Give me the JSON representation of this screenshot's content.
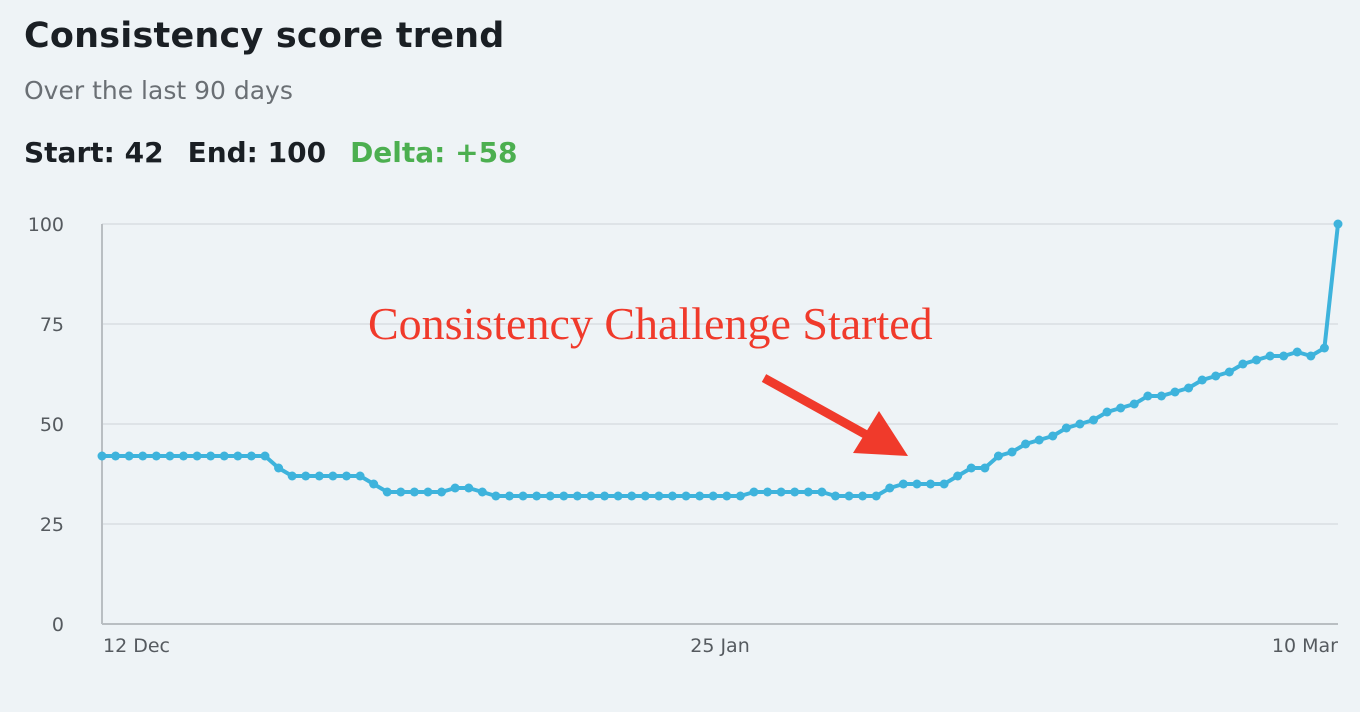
{
  "header": {
    "title": "Consistency score trend",
    "subtitle": "Over the last 90 days"
  },
  "stats": {
    "start_label": "Start: 42",
    "end_label": "End: 100",
    "delta_label": "Delta: +58",
    "delta_color": "#4caf50"
  },
  "annotation": {
    "text": "Consistency Challenge Started",
    "color": "#f03a2b"
  },
  "chart_data": {
    "type": "line",
    "title": "Consistency score trend",
    "subtitle": "Over the last 90 days",
    "xlabel": "",
    "ylabel": "",
    "ylim": [
      0,
      100
    ],
    "yticks": [
      0,
      25,
      50,
      75,
      100
    ],
    "xtick_labels": [
      "12 Dec",
      "25 Jan",
      "10 Mar"
    ],
    "x_start": "12 Dec",
    "x_end": "10 Mar",
    "grid": true,
    "line_color": "#3eb3dc",
    "series": [
      {
        "values": [
          42,
          42,
          42,
          42,
          42,
          42,
          42,
          42,
          42,
          42,
          42,
          42,
          42,
          39,
          37,
          37,
          37,
          37,
          37,
          37,
          35,
          33,
          33,
          33,
          33,
          33,
          34,
          34,
          33,
          32,
          32,
          32,
          32,
          32,
          32,
          32,
          32,
          32,
          32,
          32,
          32,
          32,
          32,
          32,
          32,
          32,
          32,
          32,
          33,
          33,
          33,
          33,
          33,
          33,
          32,
          32,
          32,
          32,
          34,
          35,
          35,
          35,
          35,
          37,
          39,
          39,
          42,
          43,
          45,
          46,
          47,
          49,
          50,
          51,
          53,
          54,
          55,
          57,
          57,
          58,
          59,
          61,
          62,
          63,
          65,
          66,
          67,
          67,
          68,
          67,
          69,
          100
        ]
      }
    ]
  }
}
